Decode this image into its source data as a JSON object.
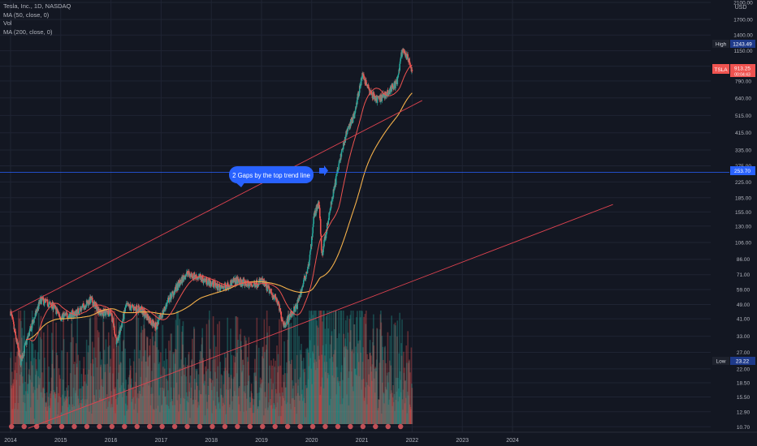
{
  "legend": {
    "symbol_line": "Tesla, Inc., 1D, NASDAQ",
    "ma50": "MA (50, close, 0)",
    "vol": "Vol",
    "ma200": "MA (200, close, 0)"
  },
  "price_axis": {
    "currency": "USD",
    "high_label": "High",
    "high_value": "1243.49",
    "low_label": "Low",
    "low_value": "23.22",
    "symbol_tag": "TSLA",
    "symbol_price": "913.25",
    "symbol_sub": "00:04:43",
    "crosshair_value": "253.70"
  },
  "annotation": {
    "text": "2 Gaps by the top trend line"
  },
  "colors": {
    "background": "#131722",
    "up": "#26a69a",
    "down": "#ef5350",
    "ma50": "#ef5350",
    "ma200": "#f5b14a",
    "trendline": "#e04350",
    "crosshair": "#2962ff",
    "callout": "#2962ff"
  },
  "chart_data": {
    "type": "candlestick",
    "title": "Tesla, Inc., 1D, NASDAQ",
    "scale": "log",
    "ylim": [
      10,
      2100
    ],
    "x_ticks": [
      "2014",
      "2015",
      "2016",
      "2017",
      "2018",
      "2019",
      "2020",
      "2021",
      "2022",
      "2023",
      "2024"
    ],
    "y_ticks": [
      "2100.00",
      "1700.00",
      "1400.00",
      "1150.00",
      "950.00",
      "790.00",
      "640.00",
      "515.00",
      "415.00",
      "335.00",
      "275.00",
      "225.00",
      "185.00",
      "155.00",
      "130.00",
      "106.00",
      "86.00",
      "71.00",
      "59.00",
      "49.00",
      "41.00",
      "33.00",
      "27.00",
      "22.00",
      "18.50",
      "15.50",
      "12.90",
      "10.70"
    ],
    "price_path": [
      {
        "t": 2014.0,
        "p": 45
      },
      {
        "t": 2014.2,
        "p": 24
      },
      {
        "t": 2014.35,
        "p": 33
      },
      {
        "t": 2014.6,
        "p": 52
      },
      {
        "t": 2014.85,
        "p": 48
      },
      {
        "t": 2015.0,
        "p": 42
      },
      {
        "t": 2015.3,
        "p": 44
      },
      {
        "t": 2015.6,
        "p": 52
      },
      {
        "t": 2015.8,
        "p": 44
      },
      {
        "t": 2016.0,
        "p": 45
      },
      {
        "t": 2016.12,
        "p": 30
      },
      {
        "t": 2016.3,
        "p": 48
      },
      {
        "t": 2016.6,
        "p": 46
      },
      {
        "t": 2016.9,
        "p": 37
      },
      {
        "t": 2017.15,
        "p": 52
      },
      {
        "t": 2017.5,
        "p": 72
      },
      {
        "t": 2017.8,
        "p": 68
      },
      {
        "t": 2018.2,
        "p": 60
      },
      {
        "t": 2018.5,
        "p": 66
      },
      {
        "t": 2018.8,
        "p": 62
      },
      {
        "t": 2019.0,
        "p": 66
      },
      {
        "t": 2019.3,
        "p": 52
      },
      {
        "t": 2019.45,
        "p": 38
      },
      {
        "t": 2019.7,
        "p": 48
      },
      {
        "t": 2019.95,
        "p": 82
      },
      {
        "t": 2020.05,
        "p": 150
      },
      {
        "t": 2020.15,
        "p": 175
      },
      {
        "t": 2020.2,
        "p": 90
      },
      {
        "t": 2020.35,
        "p": 150
      },
      {
        "t": 2020.55,
        "p": 290
      },
      {
        "t": 2020.7,
        "p": 420
      },
      {
        "t": 2020.85,
        "p": 520
      },
      {
        "t": 2021.0,
        "p": 850
      },
      {
        "t": 2021.15,
        "p": 700
      },
      {
        "t": 2021.3,
        "p": 620
      },
      {
        "t": 2021.5,
        "p": 680
      },
      {
        "t": 2021.7,
        "p": 780
      },
      {
        "t": 2021.8,
        "p": 1150
      },
      {
        "t": 2021.9,
        "p": 1060
      },
      {
        "t": 2022.0,
        "p": 913
      }
    ],
    "trendlines": [
      {
        "name": "upper",
        "from": {
          "t": 2014.0,
          "p": 44
        },
        "to": {
          "t": 2022.2,
          "p": 620
        }
      },
      {
        "name": "lower",
        "from": {
          "t": 2014.35,
          "p": 10.5
        },
        "to": {
          "t": 2026.0,
          "p": 170
        }
      }
    ],
    "horizontal_line": {
      "p": 253.7
    },
    "high": 1243.49,
    "low": 23.22,
    "last": 913.25,
    "grid": true
  }
}
